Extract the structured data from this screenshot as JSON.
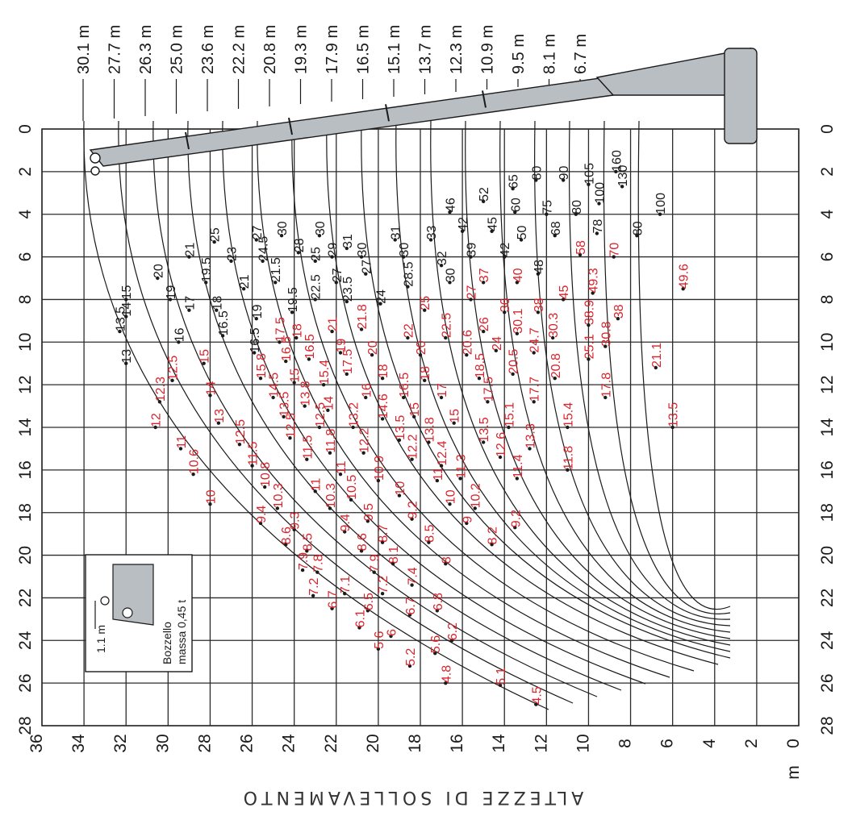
{
  "axis_title": "ALTEZZE DI SOLLEVAMENTO",
  "radius_ticks": [
    "0",
    "2",
    "4",
    "6",
    "8",
    "10",
    "12",
    "14",
    "16",
    "18",
    "20",
    "22",
    "24",
    "26",
    "28"
  ],
  "height_ticks": [
    "36",
    "34",
    "32",
    "30",
    "28",
    "26",
    "24",
    "22",
    "20",
    "18",
    "16",
    "14",
    "12",
    "10",
    "8",
    "6",
    "4",
    "2",
    "0"
  ],
  "height_unit": "m",
  "hook_block": {
    "name": "Bozzello",
    "mass": "massa 0,45 t",
    "dim": "1.1 m"
  },
  "colors": {
    "grid": "#2b2b2b",
    "boom_fill": "#b9bec3",
    "red": "#d8242c",
    "black": "#1a1a1a"
  },
  "chart_data": {
    "type": "load-chart",
    "xlabel": "",
    "ylabel": "ALTEZZE DI SOLLEVAMENTO",
    "xlim": [
      0,
      28
    ],
    "ylim": [
      0,
      36
    ],
    "boom_lengths": [
      "30.1 m",
      "27.7 m",
      "26.3 m",
      "25.0 m",
      "23.6 m",
      "22.2 m",
      "20.8 m",
      "19.3 m",
      "17.9 m",
      "16.5 m",
      "15.1 m",
      "13.7 m",
      "12.3 m",
      "10.9 m",
      "9.5 m",
      "8.1 m",
      "6.7 m"
    ],
    "capacities": [
      {
        "t": "15",
        "r": 8.0,
        "h": 32.0,
        "c": "black"
      },
      {
        "t": "14",
        "r": 8.8,
        "h": 32.0,
        "c": "black"
      },
      {
        "t": "13.5",
        "r": 9.5,
        "h": 32.3,
        "c": "black"
      },
      {
        "t": "13",
        "r": 11.0,
        "h": 32.0,
        "c": "black"
      },
      {
        "t": "12.5",
        "r": 11.8,
        "h": 29.8,
        "c": "red"
      },
      {
        "t": "12.3",
        "r": 12.8,
        "h": 30.4,
        "c": "red"
      },
      {
        "t": "12",
        "r": 14.0,
        "h": 30.6,
        "c": "red"
      },
      {
        "t": "11",
        "r": 15.0,
        "h": 29.4,
        "c": "red"
      },
      {
        "t": "10.6",
        "r": 16.2,
        "h": 28.8,
        "c": "red"
      },
      {
        "t": "10",
        "r": 17.6,
        "h": 28.0,
        "c": "red"
      },
      {
        "t": "9.4",
        "r": 18.5,
        "h": 25.6,
        "c": "red"
      },
      {
        "t": "8.6",
        "r": 19.5,
        "h": 24.4,
        "c": "red"
      },
      {
        "t": "7.9",
        "r": 20.7,
        "h": 23.6,
        "c": "red"
      },
      {
        "t": "7.2",
        "r": 21.9,
        "h": 23.1,
        "c": "red"
      },
      {
        "t": "6.7",
        "r": 22.5,
        "h": 22.2,
        "c": "red"
      },
      {
        "t": "6.1",
        "r": 23.4,
        "h": 20.9,
        "c": "red"
      },
      {
        "t": "5.6",
        "r": 24.4,
        "h": 20.0,
        "c": "red"
      },
      {
        "t": "5.2",
        "r": 25.2,
        "h": 18.5,
        "c": "red"
      },
      {
        "t": "4.8",
        "r": 26.0,
        "h": 16.8,
        "c": "red"
      },
      {
        "t": "4.5",
        "r": 27.0,
        "h": 12.5,
        "c": "red"
      },
      {
        "t": "20",
        "r": 7.0,
        "h": 30.5,
        "c": "black"
      },
      {
        "t": "19",
        "r": 8.0,
        "h": 29.9,
        "c": "black"
      },
      {
        "t": "17",
        "r": 8.5,
        "h": 29.0,
        "c": "black"
      },
      {
        "t": "16",
        "r": 10.0,
        "h": 29.5,
        "c": "black"
      },
      {
        "t": "15",
        "r": 11.0,
        "h": 28.3,
        "c": "red"
      },
      {
        "t": "14",
        "r": 12.5,
        "h": 28.0,
        "c": "red"
      },
      {
        "t": "13",
        "r": 13.8,
        "h": 27.6,
        "c": "red"
      },
      {
        "t": "12.5",
        "r": 14.8,
        "h": 26.6,
        "c": "red"
      },
      {
        "t": "11.5",
        "r": 15.8,
        "h": 26.0,
        "c": "red"
      },
      {
        "t": "10.8",
        "r": 16.8,
        "h": 25.4,
        "c": "red"
      },
      {
        "t": "10.3",
        "r": 17.8,
        "h": 24.8,
        "c": "red"
      },
      {
        "t": "9.3",
        "r": 18.8,
        "h": 24.0,
        "c": "red"
      },
      {
        "t": "8.5",
        "r": 19.8,
        "h": 23.4,
        "c": "red"
      },
      {
        "t": "7.8",
        "r": 20.8,
        "h": 22.9,
        "c": "red"
      },
      {
        "t": "7.1",
        "r": 21.8,
        "h": 21.6,
        "c": "red"
      },
      {
        "t": "6.5",
        "r": 22.6,
        "h": 20.5,
        "c": "red"
      },
      {
        "t": "6",
        "r": 23.8,
        "h": 19.4,
        "c": "red"
      },
      {
        "t": "5.6",
        "r": 24.6,
        "h": 17.3,
        "c": "red"
      },
      {
        "t": "5.1",
        "r": 26.1,
        "h": 14.2,
        "c": "red"
      },
      {
        "t": "21",
        "r": 6.0,
        "h": 29.0,
        "c": "black"
      },
      {
        "t": "19.5",
        "r": 7.2,
        "h": 28.2,
        "c": "black"
      },
      {
        "t": "18",
        "r": 8.5,
        "h": 27.7,
        "c": "black"
      },
      {
        "t": "16.5",
        "r": 9.7,
        "h": 27.4,
        "c": "black"
      },
      {
        "t": "16.5",
        "r": 10.5,
        "h": 25.9,
        "c": "black"
      },
      {
        "t": "15.8",
        "r": 11.7,
        "h": 25.6,
        "c": "red"
      },
      {
        "t": "14.5",
        "r": 12.6,
        "h": 25.0,
        "c": "red"
      },
      {
        "t": "13.5",
        "r": 13.5,
        "h": 24.5,
        "c": "red"
      },
      {
        "t": "12.5",
        "r": 14.5,
        "h": 24.2,
        "c": "red"
      },
      {
        "t": "11.5",
        "r": 15.5,
        "h": 23.4,
        "c": "red"
      },
      {
        "t": "11",
        "r": 17.0,
        "h": 23.0,
        "c": "red"
      },
      {
        "t": "10.3",
        "r": 17.8,
        "h": 22.3,
        "c": "red"
      },
      {
        "t": "9.4",
        "r": 18.9,
        "h": 21.6,
        "c": "red"
      },
      {
        "t": "8.6",
        "r": 19.8,
        "h": 20.8,
        "c": "red"
      },
      {
        "t": "7.9",
        "r": 20.8,
        "h": 20.2,
        "c": "red"
      },
      {
        "t": "7.2",
        "r": 21.8,
        "h": 19.8,
        "c": "red"
      },
      {
        "t": "6.7",
        "r": 22.8,
        "h": 18.5,
        "c": "red"
      },
      {
        "t": "6.2",
        "r": 24.0,
        "h": 16.5,
        "c": "red"
      },
      {
        "t": "25",
        "r": 5.3,
        "h": 27.8,
        "c": "black"
      },
      {
        "t": "23",
        "r": 6.2,
        "h": 27.0,
        "c": "black"
      },
      {
        "t": "21",
        "r": 7.5,
        "h": 26.4,
        "c": "black"
      },
      {
        "t": "19",
        "r": 8.9,
        "h": 25.8,
        "c": "black"
      },
      {
        "t": "17.5",
        "r": 10.0,
        "h": 24.7,
        "c": "red"
      },
      {
        "t": "16.5",
        "r": 10.9,
        "h": 24.4,
        "c": "red"
      },
      {
        "t": "15",
        "r": 11.9,
        "h": 24.0,
        "c": "red"
      },
      {
        "t": "13.8",
        "r": 13.0,
        "h": 23.5,
        "c": "red"
      },
      {
        "t": "12.5",
        "r": 14.0,
        "h": 22.8,
        "c": "red"
      },
      {
        "t": "11.8",
        "r": 15.2,
        "h": 22.3,
        "c": "red"
      },
      {
        "t": "11",
        "r": 16.2,
        "h": 21.8,
        "c": "red"
      },
      {
        "t": "10.5",
        "r": 17.4,
        "h": 21.3,
        "c": "red"
      },
      {
        "t": "9.5",
        "r": 18.4,
        "h": 20.5,
        "c": "red"
      },
      {
        "t": "8.7",
        "r": 19.4,
        "h": 19.8,
        "c": "red"
      },
      {
        "t": "8.1",
        "r": 20.4,
        "h": 19.3,
        "c": "red"
      },
      {
        "t": "7.4",
        "r": 21.4,
        "h": 18.4,
        "c": "red"
      },
      {
        "t": "6.8",
        "r": 22.6,
        "h": 17.2,
        "c": "red"
      },
      {
        "t": "27",
        "r": 5.2,
        "h": 25.8,
        "c": "black"
      },
      {
        "t": "24.5",
        "r": 6.2,
        "h": 25.5,
        "c": "black"
      },
      {
        "t": "21.5",
        "r": 7.2,
        "h": 24.9,
        "c": "black"
      },
      {
        "t": "19.5",
        "r": 8.6,
        "h": 24.1,
        "c": "black"
      },
      {
        "t": "18",
        "r": 9.8,
        "h": 23.9,
        "c": "red"
      },
      {
        "t": "16.5",
        "r": 10.8,
        "h": 23.3,
        "c": "red"
      },
      {
        "t": "15.4",
        "r": 12.0,
        "h": 22.6,
        "c": "red"
      },
      {
        "t": "14",
        "r": 13.2,
        "h": 22.4,
        "c": "red"
      },
      {
        "t": "13.2",
        "r": 14.0,
        "h": 21.2,
        "c": "red"
      },
      {
        "t": "12.2",
        "r": 15.2,
        "h": 20.7,
        "c": "red"
      },
      {
        "t": "10.9",
        "r": 16.5,
        "h": 20.0,
        "c": "red"
      },
      {
        "t": "10",
        "r": 17.2,
        "h": 19.0,
        "c": "red"
      },
      {
        "t": "9.2",
        "r": 18.3,
        "h": 18.4,
        "c": "red"
      },
      {
        "t": "8.5",
        "r": 19.4,
        "h": 17.6,
        "c": "red"
      },
      {
        "t": "8",
        "r": 20.4,
        "h": 16.8,
        "c": "red"
      },
      {
        "t": "30",
        "r": 5.0,
        "h": 24.6,
        "c": "black"
      },
      {
        "t": "28",
        "r": 5.8,
        "h": 23.8,
        "c": "black"
      },
      {
        "t": "25",
        "r": 6.2,
        "h": 23.0,
        "c": "black"
      },
      {
        "t": "22.5",
        "r": 8.0,
        "h": 23.0,
        "c": "black"
      },
      {
        "t": "21",
        "r": 9.5,
        "h": 22.2,
        "c": "red"
      },
      {
        "t": "19",
        "r": 10.5,
        "h": 21.8,
        "c": "red"
      },
      {
        "t": "17.5",
        "r": 11.5,
        "h": 21.5,
        "c": "red"
      },
      {
        "t": "16",
        "r": 12.6,
        "h": 20.6,
        "c": "red"
      },
      {
        "t": "14.6",
        "r": 13.6,
        "h": 19.8,
        "c": "red"
      },
      {
        "t": "13.5",
        "r": 14.6,
        "h": 19.0,
        "c": "red"
      },
      {
        "t": "12.2",
        "r": 15.5,
        "h": 18.4,
        "c": "red"
      },
      {
        "t": "11",
        "r": 16.5,
        "h": 17.2,
        "c": "red"
      },
      {
        "t": "10",
        "r": 17.6,
        "h": 16.6,
        "c": "red"
      },
      {
        "t": "9",
        "r": 18.5,
        "h": 15.8,
        "c": "red"
      },
      {
        "t": "8.2",
        "r": 19.5,
        "h": 14.6,
        "c": "red"
      },
      {
        "t": "30",
        "r": 5.0,
        "h": 22.8,
        "c": "black"
      },
      {
        "t": "29",
        "r": 6.0,
        "h": 22.2,
        "c": "black"
      },
      {
        "t": "27",
        "r": 7.2,
        "h": 22.0,
        "c": "black"
      },
      {
        "t": "23.5",
        "r": 8.1,
        "h": 21.5,
        "c": "black"
      },
      {
        "t": "21.8",
        "r": 9.4,
        "h": 20.8,
        "c": "red"
      },
      {
        "t": "20",
        "r": 10.6,
        "h": 20.3,
        "c": "red"
      },
      {
        "t": "18",
        "r": 11.7,
        "h": 19.8,
        "c": "red"
      },
      {
        "t": "16.5",
        "r": 12.6,
        "h": 18.8,
        "c": "red"
      },
      {
        "t": "15",
        "r": 13.5,
        "h": 18.3,
        "c": "red"
      },
      {
        "t": "13.8",
        "r": 14.7,
        "h": 17.6,
        "c": "red"
      },
      {
        "t": "12.4",
        "r": 15.8,
        "h": 17.0,
        "c": "red"
      },
      {
        "t": "11.3",
        "r": 16.4,
        "h": 16.1,
        "c": "red"
      },
      {
        "t": "10.2",
        "r": 17.8,
        "h": 15.4,
        "c": "red"
      },
      {
        "t": "9.2",
        "r": 18.7,
        "h": 13.5,
        "c": "red"
      },
      {
        "t": "31",
        "r": 5.6,
        "h": 21.5,
        "c": "black"
      },
      {
        "t": "30",
        "r": 6.0,
        "h": 20.8,
        "c": "black"
      },
      {
        "t": "27",
        "r": 6.8,
        "h": 20.6,
        "c": "black"
      },
      {
        "t": "24",
        "r": 8.2,
        "h": 19.9,
        "c": "black"
      },
      {
        "t": "22",
        "r": 9.8,
        "h": 18.6,
        "c": "red"
      },
      {
        "t": "20",
        "r": 10.6,
        "h": 18.0,
        "c": "red"
      },
      {
        "t": "18",
        "r": 11.8,
        "h": 17.8,
        "c": "red"
      },
      {
        "t": "17",
        "r": 12.6,
        "h": 17.0,
        "c": "red"
      },
      {
        "t": "15",
        "r": 13.8,
        "h": 16.4,
        "c": "red"
      },
      {
        "t": "13.5",
        "r": 14.7,
        "h": 15.0,
        "c": "red"
      },
      {
        "t": "12.6",
        "r": 15.4,
        "h": 14.2,
        "c": "red"
      },
      {
        "t": "11.4",
        "r": 16.4,
        "h": 13.4,
        "c": "red"
      },
      {
        "t": "31",
        "r": 5.2,
        "h": 19.2,
        "c": "black"
      },
      {
        "t": "30",
        "r": 6.0,
        "h": 18.8,
        "c": "black"
      },
      {
        "t": "28.5",
        "r": 7.4,
        "h": 18.6,
        "c": "black"
      },
      {
        "t": "25",
        "r": 8.5,
        "h": 17.8,
        "c": "red"
      },
      {
        "t": "22.5",
        "r": 9.8,
        "h": 16.8,
        "c": "red"
      },
      {
        "t": "20.6",
        "r": 10.6,
        "h": 15.8,
        "c": "red"
      },
      {
        "t": "18.5",
        "r": 11.7,
        "h": 15.2,
        "c": "red"
      },
      {
        "t": "17.5",
        "r": 12.8,
        "h": 14.8,
        "c": "red"
      },
      {
        "t": "15.1",
        "r": 14.0,
        "h": 13.8,
        "c": "red"
      },
      {
        "t": "13.3",
        "r": 15.0,
        "h": 12.8,
        "c": "red"
      },
      {
        "t": "11.8",
        "r": 16.0,
        "h": 11.0,
        "c": "red"
      },
      {
        "t": "33",
        "r": 5.2,
        "h": 17.5,
        "c": "black"
      },
      {
        "t": "32",
        "r": 6.4,
        "h": 17.0,
        "c": "black"
      },
      {
        "t": "30",
        "r": 7.2,
        "h": 16.6,
        "c": "black"
      },
      {
        "t": "27",
        "r": 8.0,
        "h": 15.6,
        "c": "red"
      },
      {
        "t": "26",
        "r": 9.5,
        "h": 15.0,
        "c": "red"
      },
      {
        "t": "24",
        "r": 10.4,
        "h": 14.4,
        "c": "red"
      },
      {
        "t": "20.5",
        "r": 11.5,
        "h": 13.6,
        "c": "red"
      },
      {
        "t": "17.7",
        "r": 12.8,
        "h": 12.6,
        "c": "red"
      },
      {
        "t": "15.4",
        "r": 14.0,
        "h": 11.0,
        "c": "red"
      },
      {
        "t": "46",
        "r": 3.9,
        "h": 16.6,
        "c": "black"
      },
      {
        "t": "42",
        "r": 4.8,
        "h": 16.0,
        "c": "black"
      },
      {
        "t": "39",
        "r": 6.0,
        "h": 15.6,
        "c": "black"
      },
      {
        "t": "37",
        "r": 7.2,
        "h": 15.0,
        "c": "red"
      },
      {
        "t": "36",
        "r": 8.6,
        "h": 14.0,
        "c": "red"
      },
      {
        "t": "30.1",
        "r": 9.6,
        "h": 13.4,
        "c": "red"
      },
      {
        "t": "24.7",
        "r": 10.5,
        "h": 12.6,
        "c": "red"
      },
      {
        "t": "20.8",
        "r": 11.7,
        "h": 11.6,
        "c": "red"
      },
      {
        "t": "17.8",
        "r": 12.6,
        "h": 9.2,
        "c": "red"
      },
      {
        "t": "52",
        "r": 3.4,
        "h": 15.0,
        "c": "black"
      },
      {
        "t": "45",
        "r": 4.8,
        "h": 14.6,
        "c": "black"
      },
      {
        "t": "42",
        "r": 6.0,
        "h": 14.0,
        "c": "black"
      },
      {
        "t": "40",
        "r": 7.2,
        "h": 13.4,
        "c": "red"
      },
      {
        "t": "38",
        "r": 8.6,
        "h": 12.4,
        "c": "red"
      },
      {
        "t": "30.3",
        "r": 9.8,
        "h": 11.7,
        "c": "red"
      },
      {
        "t": "25.1",
        "r": 10.8,
        "h": 10.0,
        "c": "red"
      },
      {
        "t": "65",
        "r": 2.8,
        "h": 13.6,
        "c": "black"
      },
      {
        "t": "60",
        "r": 3.9,
        "h": 13.5,
        "c": "black"
      },
      {
        "t": "50",
        "r": 5.2,
        "h": 13.2,
        "c": "black"
      },
      {
        "t": "48",
        "r": 6.8,
        "h": 12.4,
        "c": "black"
      },
      {
        "t": "45",
        "r": 8.0,
        "h": 11.2,
        "c": "red"
      },
      {
        "t": "38.9",
        "r": 9.2,
        "h": 10.0,
        "c": "red"
      },
      {
        "t": "30.8",
        "r": 10.2,
        "h": 9.2,
        "c": "red"
      },
      {
        "t": "21.1",
        "r": 11.2,
        "h": 6.8,
        "c": "red"
      },
      {
        "t": "80",
        "r": 2.4,
        "h": 12.5,
        "c": "black"
      },
      {
        "t": "75",
        "r": 4.0,
        "h": 12.0,
        "c": "black"
      },
      {
        "t": "68",
        "r": 5.0,
        "h": 11.6,
        "c": "black"
      },
      {
        "t": "58",
        "r": 5.9,
        "h": 10.4,
        "c": "red"
      },
      {
        "t": "49.3",
        "r": 7.7,
        "h": 9.8,
        "c": "red"
      },
      {
        "t": "38",
        "r": 8.9,
        "h": 8.6,
        "c": "red"
      },
      {
        "t": "90",
        "r": 2.4,
        "h": 11.2,
        "c": "black"
      },
      {
        "t": "80",
        "r": 4.0,
        "h": 10.6,
        "c": "black"
      },
      {
        "t": "78",
        "r": 4.9,
        "h": 9.6,
        "c": "black"
      },
      {
        "t": "70",
        "r": 6.0,
        "h": 8.8,
        "c": "red"
      },
      {
        "t": "105",
        "r": 2.6,
        "h": 10.0,
        "c": "black"
      },
      {
        "t": "100",
        "r": 3.5,
        "h": 9.5,
        "c": "black"
      },
      {
        "t": "80",
        "r": 5.0,
        "h": 7.7,
        "c": "black"
      },
      {
        "t": "160",
        "r": 2.0,
        "h": 8.7,
        "c": "black"
      },
      {
        "t": "130",
        "r": 2.7,
        "h": 8.4,
        "c": "black"
      },
      {
        "t": "100",
        "r": 4.0,
        "h": 6.6,
        "c": "black"
      },
      {
        "t": "49.6",
        "r": 7.5,
        "h": 5.5,
        "c": "red"
      },
      {
        "t": "13.5",
        "r": 14.0,
        "h": 6.0,
        "c": "red"
      }
    ]
  }
}
